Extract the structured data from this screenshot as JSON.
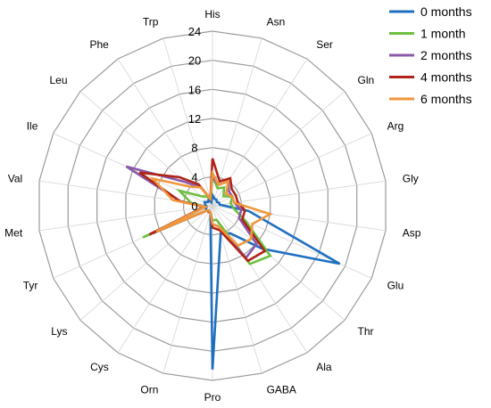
{
  "chart_data": {
    "type": "radar",
    "title": "",
    "categories": [
      "His",
      "Asn",
      "Ser",
      "Gln",
      "Arg",
      "Gly",
      "Asp",
      "Glu",
      "Thr",
      "Ala",
      "GABA",
      "Pro",
      "Orn",
      "Cys",
      "Lys",
      "Tyr",
      "Met",
      "Val",
      "Ile",
      "Leu",
      "Phe",
      "Trp"
    ],
    "r_ticks": [
      0,
      4,
      8,
      12,
      16,
      20,
      24
    ],
    "r_range": [
      0,
      24
    ],
    "legend_position": "top-right",
    "grid": true,
    "series": [
      {
        "name": "0 months",
        "color": "#1f6fc0",
        "values": [
          1.5,
          1,
          1,
          0.8,
          1,
          1,
          5,
          19.2,
          9,
          4.5,
          4,
          22.5,
          1,
          0.8,
          1,
          1,
          0.8,
          1,
          1.2,
          0.8,
          1,
          0.5
        ]
      },
      {
        "name": "1 month",
        "color": "#6dbf3f",
        "values": [
          4,
          2.5,
          3,
          2,
          3,
          2.5,
          3,
          5,
          10.5,
          9.5,
          2,
          2,
          1,
          0.8,
          1,
          10.5,
          1,
          3,
          5,
          2,
          1.5,
          1
        ]
      },
      {
        "name": "2 months",
        "color": "#8a5aa8",
        "values": [
          4,
          3,
          4,
          3,
          3,
          3,
          4,
          4,
          8,
          8.5,
          3,
          2.5,
          1,
          0.8,
          1,
          9.5,
          1,
          4.5,
          13,
          5,
          3,
          1
        ]
      },
      {
        "name": "4 months",
        "color": "#b02418",
        "values": [
          6.5,
          3.5,
          4.5,
          3.5,
          3.5,
          3.5,
          4.5,
          4.5,
          9.5,
          9,
          3.5,
          3,
          1,
          1,
          1,
          9.5,
          1.2,
          4.5,
          11,
          6,
          3.5,
          1
        ]
      },
      {
        "name": "6 months",
        "color": "#f0973b",
        "values": [
          4.5,
          3,
          4,
          2.5,
          3,
          3,
          8,
          6,
          7,
          6.5,
          3,
          2.5,
          1,
          0.8,
          1,
          8.5,
          1,
          5.5,
          9,
          4,
          3,
          1
        ]
      }
    ]
  }
}
